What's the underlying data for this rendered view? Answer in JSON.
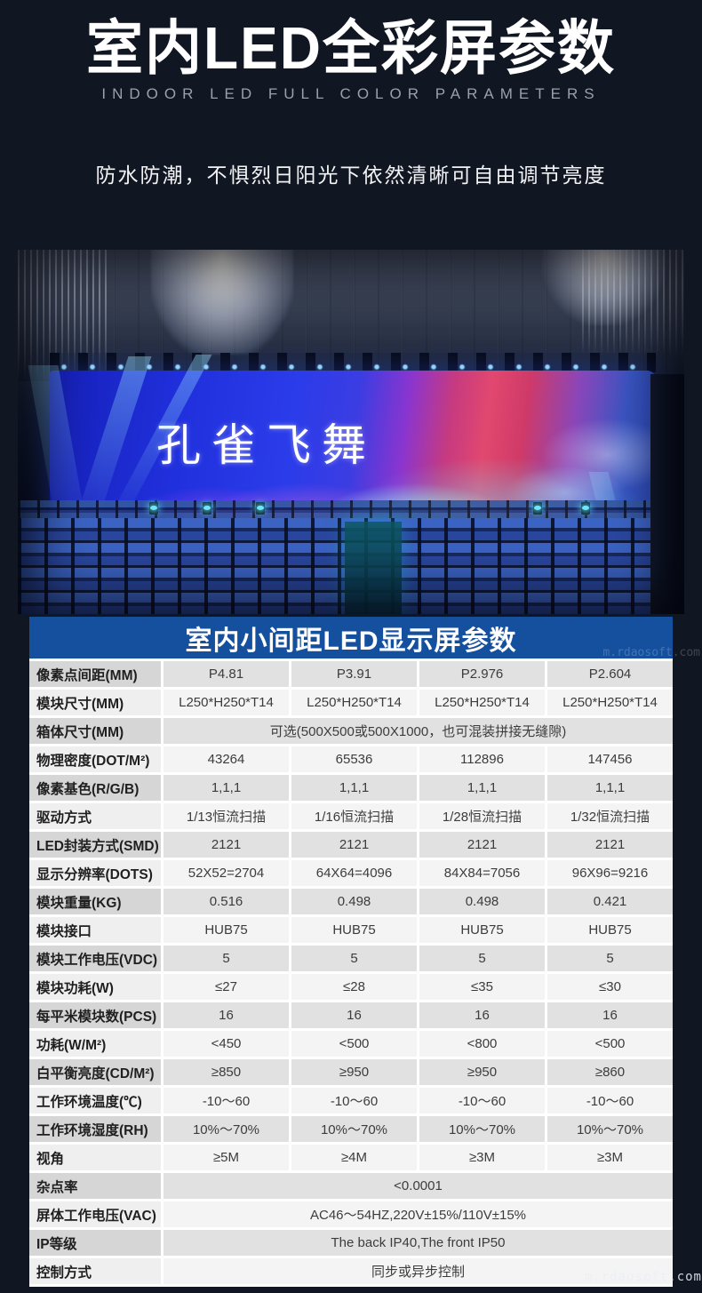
{
  "page": {
    "title": "室内LED全彩屏参数",
    "title_en": "INDOOR LED FULL COLOR PARAMETERS",
    "tagline": "防水防潮，不惧烈日阳光下依然清晰可自由调节亮度",
    "watermark_top": "m.rdaosoft.com",
    "watermark_bottom": "m.rdaosoft.com"
  },
  "photo": {
    "screen_text": "孔雀飞舞"
  },
  "colors": {
    "table_header_bg": "#15509e",
    "page_bg": "#111623",
    "row_gray": "#e1e1e1",
    "row_light": "#f4f4f4"
  },
  "table": {
    "title": "室内小间距LED显示屏参数",
    "rows": [
      {
        "label": "像素点间距(MM)",
        "values": [
          "P4.81",
          "P3.91",
          "P2.976",
          "P2.604"
        ]
      },
      {
        "label": "模块尺寸(MM)",
        "values": [
          "L250*H250*T14",
          "L250*H250*T14",
          "L250*H250*T14",
          "L250*H250*T14"
        ]
      },
      {
        "label": "箱体尺寸(MM)",
        "span": "可选(500X500或500X1000，也可混装拼接无缝隙)"
      },
      {
        "label": "物理密度(DOT/M²)",
        "values": [
          "43264",
          "65536",
          "112896",
          "147456"
        ]
      },
      {
        "label": "像素基色(R/G/B)",
        "values": [
          "1,1,1",
          "1,1,1",
          "1,1,1",
          "1,1,1"
        ]
      },
      {
        "label": "驱动方式",
        "values": [
          "1/13恒流扫描",
          "1/16恒流扫描",
          "1/28恒流扫描",
          "1/32恒流扫描"
        ]
      },
      {
        "label": "LED封装方式(SMD)",
        "values": [
          "2121",
          "2121",
          "2121",
          "2121"
        ]
      },
      {
        "label": "显示分辨率(DOTS)",
        "values": [
          "52X52=2704",
          "64X64=4096",
          "84X84=7056",
          "96X96=9216"
        ]
      },
      {
        "label": "模块重量(KG)",
        "values": [
          "0.516",
          "0.498",
          "0.498",
          "0.421"
        ]
      },
      {
        "label": "模块接口",
        "values": [
          "HUB75",
          "HUB75",
          "HUB75",
          "HUB75"
        ]
      },
      {
        "label": "模块工作电压(VDC)",
        "values": [
          "5",
          "5",
          "5",
          "5"
        ]
      },
      {
        "label": "模块功耗(W)",
        "values": [
          "≤27",
          "≤28",
          "≤35",
          "≤30"
        ]
      },
      {
        "label": "每平米模块数(PCS)",
        "values": [
          "16",
          "16",
          "16",
          "16"
        ]
      },
      {
        "label": "功耗(W/M²)",
        "values": [
          "<450",
          "<500",
          "<800",
          "<500"
        ]
      },
      {
        "label": "白平衡亮度(CD/M²)",
        "values": [
          "≥850",
          "≥950",
          "≥950",
          "≥860"
        ]
      },
      {
        "label": "工作环境温度(℃)",
        "values": [
          "-10～60",
          "-10～60",
          "-10～60",
          "-10～60"
        ]
      },
      {
        "label": "工作环境湿度(RH)",
        "values": [
          "10%～70%",
          "10%～70%",
          "10%～70%",
          "10%～70%"
        ]
      },
      {
        "label": "视角",
        "values": [
          "≥5M",
          "≥4M",
          "≥3M",
          "≥3M"
        ]
      },
      {
        "label": "杂点率",
        "span": "<0.0001"
      },
      {
        "label": "屏体工作电压(VAC)",
        "span": "AC46～54HZ,220V±15%/110V±15%"
      },
      {
        "label": "IP等级",
        "span": "The back IP40,The front IP50"
      },
      {
        "label": "控制方式",
        "span": "同步或异步控制"
      }
    ]
  }
}
